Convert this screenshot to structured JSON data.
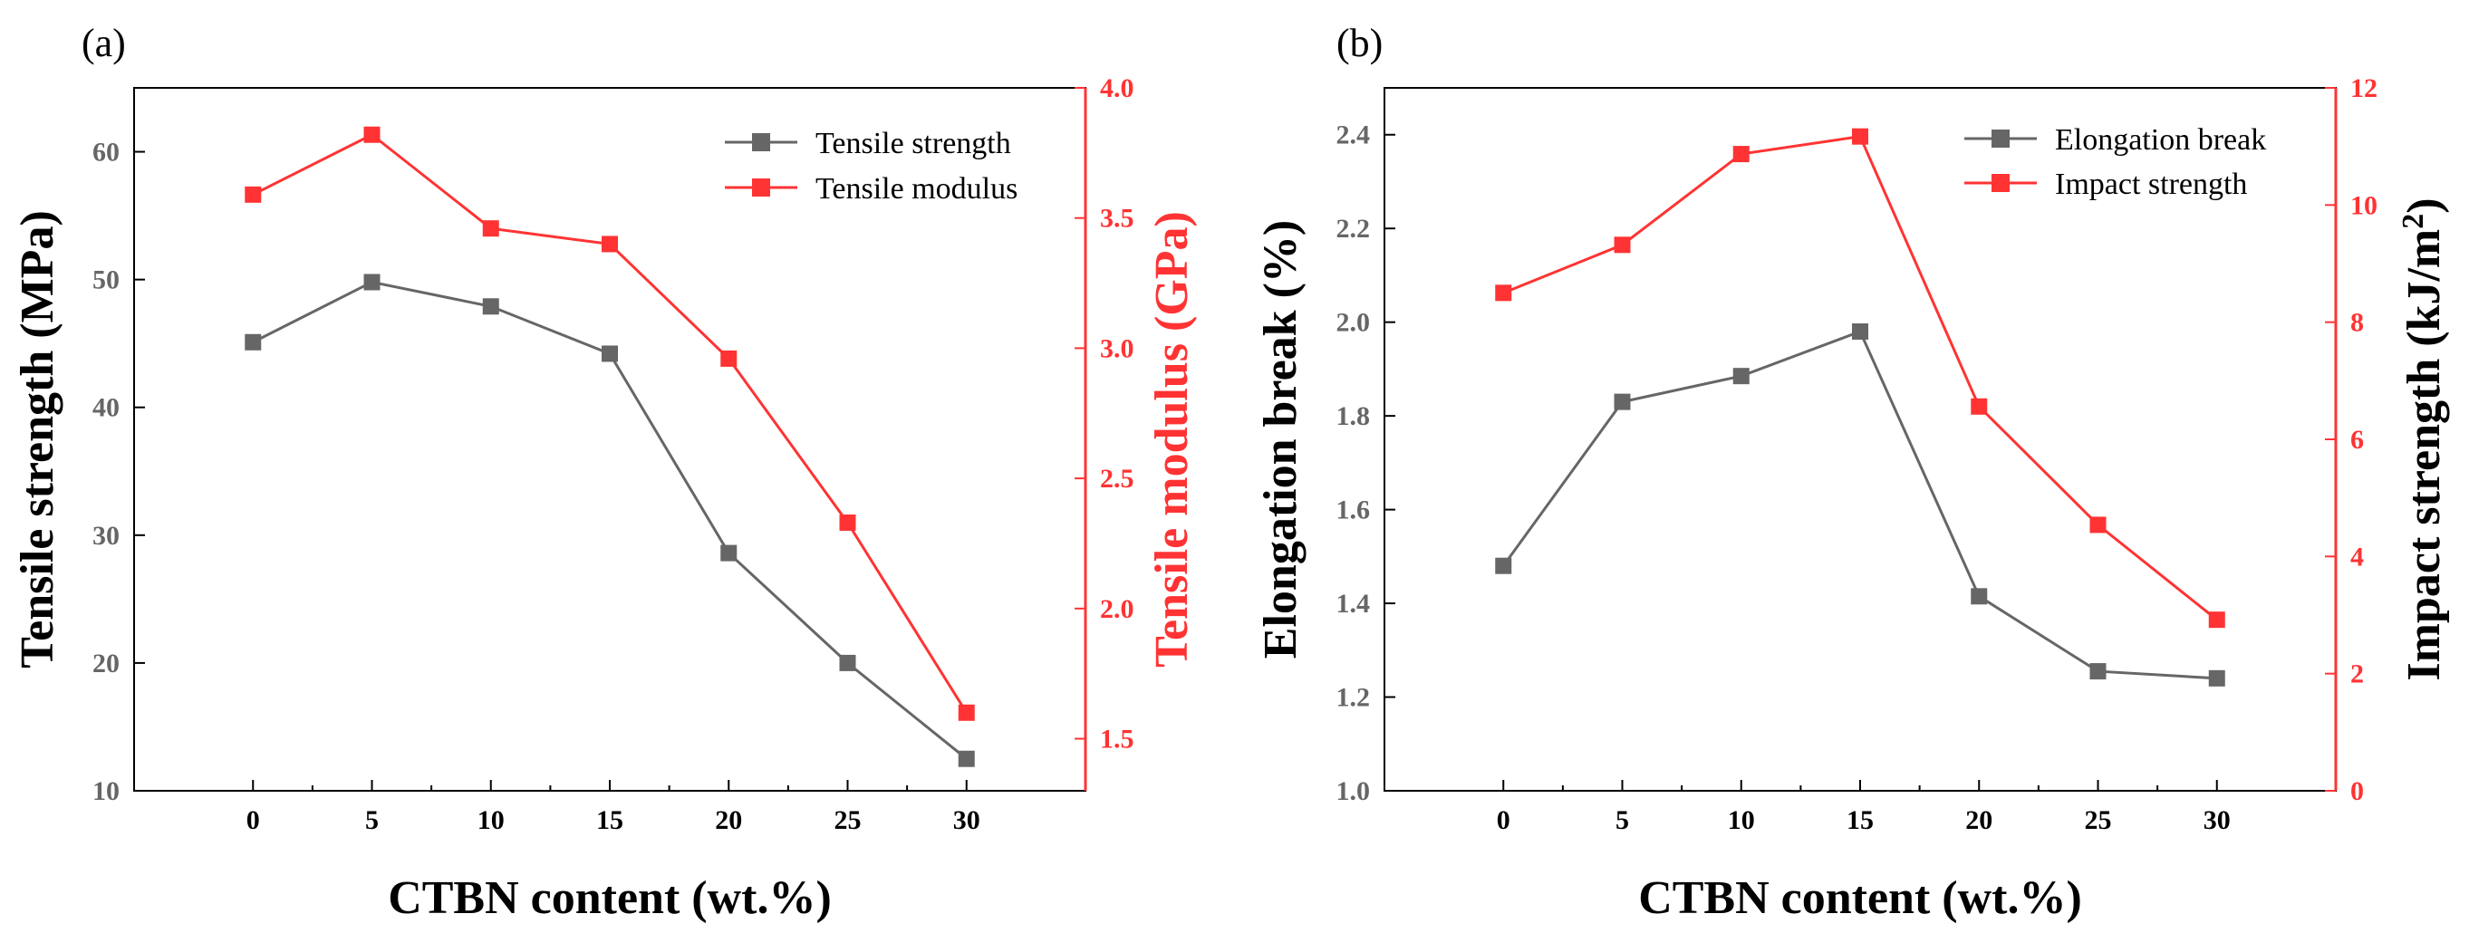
{
  "chart_data": [
    {
      "type": "line",
      "panel_label": "(a)",
      "x": [
        0,
        5,
        10,
        15,
        20,
        25,
        30
      ],
      "xticks": [
        "0",
        "5",
        "10",
        "15",
        "20",
        "25",
        "30"
      ],
      "xlabel": "CTBN content (wt.%)",
      "xlim": [
        -5,
        35
      ],
      "ylabel_left": "Tensile strength (MPa)",
      "ylim_left": [
        10,
        65
      ],
      "yticks_left": [
        "10",
        "20",
        "30",
        "40",
        "50",
        "60"
      ],
      "ylabel_right": "Tensile modulus (GPa)",
      "ylim_right": [
        1.3,
        4.0
      ],
      "yticks_right": [
        "1.5",
        "2.0",
        "2.5",
        "3.0",
        "3.5",
        "4.0"
      ],
      "legend_position": "top-right",
      "series": [
        {
          "name": "Tensile strength",
          "axis": "left",
          "color": "#666666",
          "values": [
            45.1,
            49.8,
            47.9,
            44.2,
            28.6,
            20.0,
            12.5
          ]
        },
        {
          "name": "Tensile modulus",
          "axis": "right",
          "color": "#ff3333",
          "values": [
            3.59,
            3.82,
            3.46,
            3.4,
            2.96,
            2.33,
            1.6
          ]
        }
      ]
    },
    {
      "type": "line",
      "panel_label": "(b)",
      "x": [
        0,
        5,
        10,
        15,
        20,
        25,
        30
      ],
      "xticks": [
        "0",
        "5",
        "10",
        "15",
        "20",
        "25",
        "30"
      ],
      "xlabel": "CTBN content (wt.%)",
      "xlim": [
        -5,
        35
      ],
      "ylabel_left": "Elongation break (%)",
      "ylim_left": [
        1.0,
        2.5
      ],
      "yticks_left": [
        "1.0",
        "1.2",
        "1.4",
        "1.6",
        "1.8",
        "2.0",
        "2.2",
        "2.4"
      ],
      "ylabel_right": "Impact strength (kJ/m",
      "ylabel_right_sup": "2",
      "ylabel_right_end": ")",
      "ylim_right": [
        0,
        12
      ],
      "yticks_right": [
        "0",
        "2",
        "4",
        "6",
        "8",
        "10",
        "12"
      ],
      "legend_position": "top-right",
      "series": [
        {
          "name": "Elongation break",
          "axis": "left",
          "color": "#666666",
          "values": [
            1.48,
            1.83,
            1.885,
            1.98,
            1.415,
            1.255,
            1.24
          ]
        },
        {
          "name": "Impact strength",
          "axis": "right",
          "color": "#ff3333",
          "values": [
            8.5,
            9.32,
            10.87,
            11.17,
            6.56,
            4.54,
            2.92
          ]
        }
      ]
    }
  ]
}
